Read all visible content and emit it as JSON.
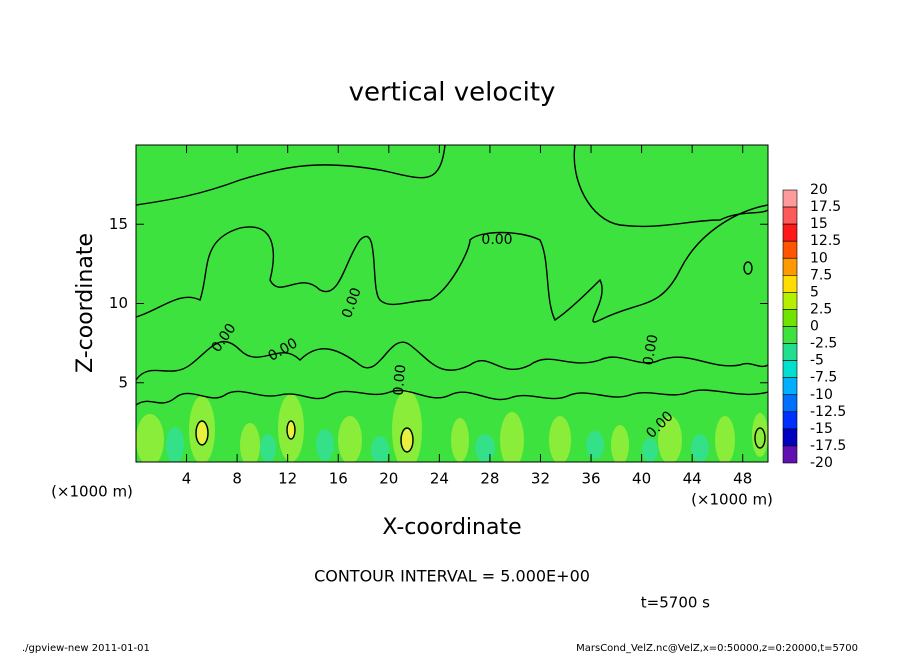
{
  "chart_data": {
    "type": "contour",
    "title": "vertical velocity",
    "x_label": "X-coordinate",
    "y_label": "Z-coordinate",
    "x_unit": "(×1000 m)",
    "y_unit": "(×1000 m)",
    "xlim": [
      0,
      50
    ],
    "xticks": [
      4,
      8,
      12,
      16,
      20,
      24,
      28,
      32,
      36,
      40,
      44,
      48
    ],
    "ylim": [
      0,
      20
    ],
    "yticks": [
      5,
      10,
      15
    ],
    "colorbar": {
      "levels": [
        20,
        17.5,
        15,
        12.5,
        10,
        7.5,
        5,
        2.5,
        0,
        -2.5,
        -5,
        -7.5,
        -10,
        -12.5,
        -15,
        -17.5,
        -20
      ],
      "colors": [
        "#ff9a9a",
        "#ff5a5a",
        "#ff1a1a",
        "#ff5500",
        "#ff9900",
        "#ffdd00",
        "#b4f000",
        "#70e400",
        "#3ee23e",
        "#20e090",
        "#00e0d0",
        "#00b0ff",
        "#0070ff",
        "#0030ff",
        "#0000c0",
        "#6010b0"
      ]
    },
    "contour_labels": [
      "0.00",
      "0.00",
      "0.00",
      "0.00",
      "0.00",
      "0.00",
      "0.00"
    ],
    "contour_interval": "CONTOUR INTERVAL = 5.000E+00",
    "time": "t=5700 s",
    "footer_left": "./gpview-new   2011-01-01",
    "footer_right": "MarsCond_VelZ.nc@VelZ,x=0:50000,z=0:20000,t=5700"
  }
}
